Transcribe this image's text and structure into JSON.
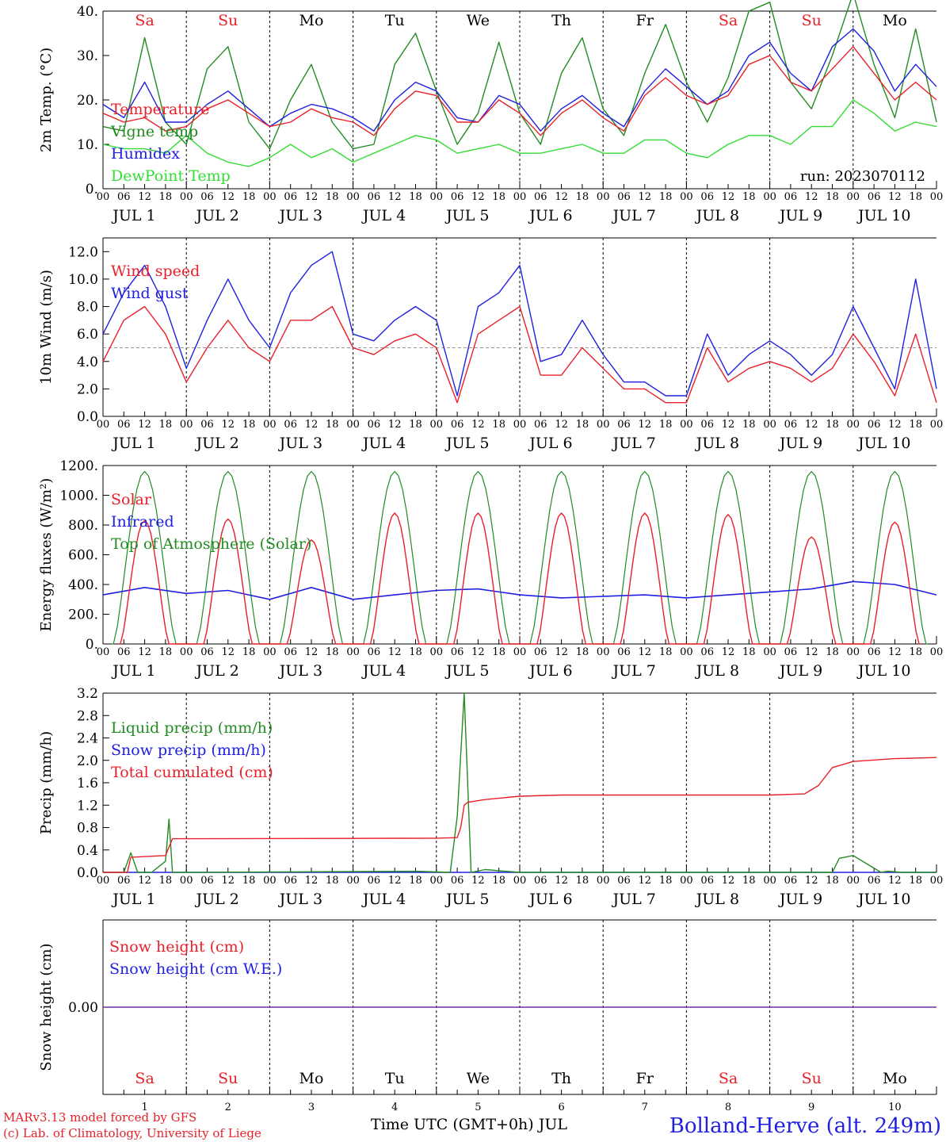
{
  "days": {
    "labels": [
      "JUL  1",
      "JUL  2",
      "JUL  3",
      "JUL  4",
      "JUL  5",
      "JUL  6",
      "JUL  7",
      "JUL  8",
      "JUL  9",
      "JUL 10"
    ],
    "weekdays": [
      "Sa",
      "Su",
      "Mo",
      "Tu",
      "We",
      "Th",
      "Fr",
      "Sa",
      "Su",
      "Mo"
    ],
    "weekday_colors": [
      "#e8202a",
      "#e8202a",
      "#000000",
      "#000000",
      "#000000",
      "#000000",
      "#000000",
      "#e8202a",
      "#e8202a",
      "#000000"
    ],
    "numbers": [
      "1",
      "2",
      "3",
      "4",
      "5",
      "6",
      "7",
      "8",
      "9",
      "10"
    ],
    "hour_ticks": [
      "00",
      "06",
      "12",
      "18"
    ],
    "end_tick": "00"
  },
  "colors": {
    "red": "#e8202a",
    "blue": "#2020e0",
    "green": "#228b22",
    "lightgreen": "#33dd33",
    "purple": "#7030a0"
  },
  "footer": {
    "credit_line1": "MARv3.13 model forced by GFS",
    "credit_line2": "(c) Lab. of Climatology, University of Liege",
    "xlabel": "Time UTC (GMT+0h) JUL",
    "station": "Bolland-Herve (alt. 249m)"
  },
  "chart_data": [
    {
      "type": "line",
      "ylabel": "2m Temp. (°C)",
      "ylim": [
        0,
        40
      ],
      "yticks": [
        "0.",
        "10.",
        "20.",
        "30.",
        "40."
      ],
      "x_unit": "hours since JUL 1 00 UTC",
      "annotation": "run: 2023070112",
      "series": [
        {
          "name": "Temperature",
          "color": "#e8202a",
          "x": [
            0,
            6,
            12,
            18,
            24,
            30,
            36,
            42,
            48,
            54,
            60,
            66,
            72,
            78,
            84,
            90,
            96,
            102,
            108,
            114,
            120,
            126,
            132,
            138,
            144,
            150,
            156,
            162,
            168,
            174,
            180,
            186,
            192,
            198,
            204,
            210,
            216,
            222,
            228,
            234,
            240
          ],
          "y": [
            17,
            15,
            16,
            13,
            14,
            18,
            20,
            17,
            14,
            15,
            18,
            16,
            15,
            12,
            18,
            22,
            21,
            15,
            15,
            20,
            17,
            12,
            17,
            20,
            16,
            13,
            21,
            25,
            21,
            19,
            21,
            28,
            30,
            24,
            22,
            27,
            32,
            26,
            20,
            24,
            20
          ]
        },
        {
          "name": "Vigne temp",
          "color": "#228b22",
          "x": [
            0,
            6,
            12,
            18,
            24,
            30,
            36,
            42,
            48,
            54,
            60,
            66,
            72,
            78,
            84,
            90,
            96,
            102,
            108,
            114,
            120,
            126,
            132,
            138,
            144,
            150,
            156,
            162,
            168,
            174,
            180,
            186,
            192,
            198,
            204,
            210,
            216,
            222,
            228,
            234,
            240
          ],
          "y": [
            14,
            13,
            34,
            15,
            10,
            27,
            32,
            15,
            9,
            20,
            28,
            15,
            9,
            10,
            28,
            35,
            22,
            10,
            17,
            33,
            17,
            10,
            26,
            34,
            18,
            12,
            26,
            37,
            24,
            15,
            25,
            40,
            42,
            24,
            18,
            30,
            44,
            28,
            16,
            36,
            15
          ]
        },
        {
          "name": "Humidex",
          "color": "#2020e0",
          "x": [
            0,
            6,
            12,
            18,
            24,
            30,
            36,
            42,
            48,
            54,
            60,
            66,
            72,
            78,
            84,
            90,
            96,
            102,
            108,
            114,
            120,
            126,
            132,
            138,
            144,
            150,
            156,
            162,
            168,
            174,
            180,
            186,
            192,
            198,
            204,
            210,
            216,
            222,
            228,
            234,
            240
          ],
          "y": [
            19,
            16,
            24,
            15,
            15,
            19,
            22,
            18,
            14,
            17,
            19,
            18,
            16,
            13,
            20,
            24,
            22,
            16,
            15,
            21,
            19,
            13,
            18,
            21,
            17,
            14,
            22,
            27,
            23,
            19,
            22,
            30,
            33,
            26,
            22,
            32,
            36,
            31,
            22,
            28,
            23
          ]
        },
        {
          "name": "DewPoint Temp",
          "color": "#33dd33",
          "x": [
            0,
            6,
            12,
            18,
            24,
            30,
            36,
            42,
            48,
            54,
            60,
            66,
            72,
            78,
            84,
            90,
            96,
            102,
            108,
            114,
            120,
            126,
            132,
            138,
            144,
            150,
            156,
            162,
            168,
            174,
            180,
            186,
            192,
            198,
            204,
            210,
            216,
            222,
            228,
            234,
            240
          ],
          "y": [
            10,
            9,
            9,
            8,
            12,
            8,
            6,
            5,
            7,
            10,
            7,
            9,
            6,
            8,
            10,
            12,
            11,
            8,
            9,
            10,
            8,
            8,
            9,
            10,
            8,
            8,
            11,
            11,
            8,
            7,
            10,
            12,
            12,
            10,
            14,
            14,
            20,
            17,
            13,
            15,
            14
          ]
        }
      ]
    },
    {
      "type": "line",
      "ylabel": "10m Wind (m/s)",
      "ylim": [
        0,
        13
      ],
      "yticks": [
        "0.0",
        "2.0",
        "4.0",
        "6.0",
        "8.0",
        "10.0",
        "12.0"
      ],
      "ref_line": 5,
      "x_unit": "hours since JUL 1 00 UTC",
      "series": [
        {
          "name": "Wind speed",
          "color": "#e8202a",
          "x": [
            0,
            6,
            12,
            18,
            24,
            30,
            36,
            42,
            48,
            54,
            60,
            66,
            72,
            78,
            84,
            90,
            96,
            102,
            108,
            114,
            120,
            126,
            132,
            138,
            144,
            150,
            156,
            162,
            168,
            174,
            180,
            186,
            192,
            198,
            204,
            210,
            216,
            222,
            228,
            234,
            240
          ],
          "y": [
            4,
            7,
            8,
            6,
            2.5,
            5,
            7,
            5,
            4,
            7,
            7,
            8,
            5,
            4.5,
            5.5,
            6,
            5,
            1,
            6,
            7,
            8,
            3,
            3,
            5,
            3.5,
            2,
            2,
            1,
            1,
            5,
            2.5,
            3.5,
            4,
            3.5,
            2.5,
            3.5,
            6,
            4,
            1.5,
            6,
            1
          ]
        },
        {
          "name": "Wind gust",
          "color": "#2020e0",
          "x": [
            0,
            6,
            12,
            18,
            24,
            30,
            36,
            42,
            48,
            54,
            60,
            66,
            72,
            78,
            84,
            90,
            96,
            102,
            108,
            114,
            120,
            126,
            132,
            138,
            144,
            150,
            156,
            162,
            168,
            174,
            180,
            186,
            192,
            198,
            204,
            210,
            216,
            222,
            228,
            234,
            240
          ],
          "y": [
            6,
            9,
            11,
            8,
            3.5,
            7,
            10,
            7,
            5,
            9,
            11,
            12,
            6,
            5.5,
            7,
            8,
            7,
            1.5,
            8,
            9,
            11,
            4,
            4.5,
            7,
            4.5,
            2.5,
            2.5,
            1.5,
            1.5,
            6,
            3,
            4.5,
            5.5,
            4.5,
            3,
            4.5,
            8,
            5,
            2,
            10,
            2
          ]
        }
      ]
    },
    {
      "type": "line",
      "ylabel": "Energy fluxes (W/m²)",
      "ylim": [
        0,
        1200
      ],
      "yticks": [
        "0.",
        "200.",
        "400.",
        "600.",
        "800.",
        "1000.",
        "1200."
      ],
      "x_unit": "hours since JUL 1 00 UTC",
      "series": [
        {
          "name": "Solar",
          "color": "#e8202a",
          "values_by_day": [
            830,
            840,
            700,
            880,
            880,
            880,
            880,
            870,
            720,
            820
          ]
        },
        {
          "name": "Infrared",
          "color": "#2020e0",
          "x": [
            0,
            12,
            24,
            36,
            48,
            60,
            72,
            84,
            96,
            108,
            120,
            132,
            144,
            156,
            168,
            180,
            192,
            204,
            216,
            228,
            240
          ],
          "y": [
            330,
            380,
            340,
            360,
            300,
            380,
            300,
            330,
            360,
            370,
            330,
            310,
            320,
            330,
            310,
            330,
            350,
            370,
            420,
            400,
            330
          ]
        },
        {
          "name": "Top of Atmosphere (Solar)",
          "color": "#228b22",
          "values_by_day": [
            1160,
            1160,
            1160,
            1160,
            1160,
            1160,
            1160,
            1160,
            1160,
            1160
          ]
        }
      ]
    },
    {
      "type": "line",
      "ylabel": "Precip (mm/h)",
      "ylim": [
        0,
        3.2
      ],
      "yticks": [
        "0.0",
        "0.4",
        "0.8",
        "1.2",
        "1.6",
        "2.0",
        "2.4",
        "2.8",
        "3.2"
      ],
      "x_unit": "hours since JUL 1 00 UTC",
      "series": [
        {
          "name": "Liquid precip (mm/h)",
          "color": "#228b22",
          "x": [
            0,
            6,
            8,
            10,
            14,
            18,
            19,
            20,
            24,
            90,
            100,
            102,
            104,
            106,
            110,
            120,
            210,
            212,
            216,
            220,
            224,
            226,
            230,
            240
          ],
          "y": [
            0,
            0,
            0.35,
            0,
            0,
            0.2,
            0.95,
            0,
            0,
            0.02,
            0,
            1.0,
            3.2,
            0,
            0.05,
            0,
            0,
            0.25,
            0.3,
            0.15,
            0,
            0.02,
            0,
            0
          ]
        },
        {
          "name": "Snow precip (mm/h)",
          "color": "#2020e0",
          "x": [
            0,
            240
          ],
          "y": [
            0,
            0
          ]
        },
        {
          "name": "Total cumulated (cm)",
          "color": "#e8202a",
          "x": [
            0,
            7,
            8,
            18,
            19,
            20,
            24,
            96,
            102,
            103,
            104,
            105,
            110,
            120,
            132,
            144,
            168,
            192,
            202,
            206,
            210,
            216,
            228,
            240
          ],
          "y": [
            0,
            0,
            0.27,
            0.3,
            0.45,
            0.6,
            0.6,
            0.61,
            0.62,
            0.8,
            1.2,
            1.25,
            1.3,
            1.36,
            1.38,
            1.38,
            1.38,
            1.38,
            1.4,
            1.55,
            1.87,
            1.98,
            2.03,
            2.05
          ]
        }
      ]
    },
    {
      "type": "line",
      "ylabel": "Snow height (cm)",
      "ylim": [
        -1,
        1
      ],
      "yticks": [
        "0.00"
      ],
      "x_unit": "hours since JUL 1 00 UTC",
      "series": [
        {
          "name": "Snow height (cm)",
          "color": "#e8202a",
          "x": [
            0,
            240
          ],
          "y": [
            0,
            0
          ]
        },
        {
          "name": "Snow height (cm W.E.)",
          "color": "#2020e0",
          "x": [
            0,
            240
          ],
          "y": [
            0,
            0
          ]
        }
      ]
    }
  ]
}
